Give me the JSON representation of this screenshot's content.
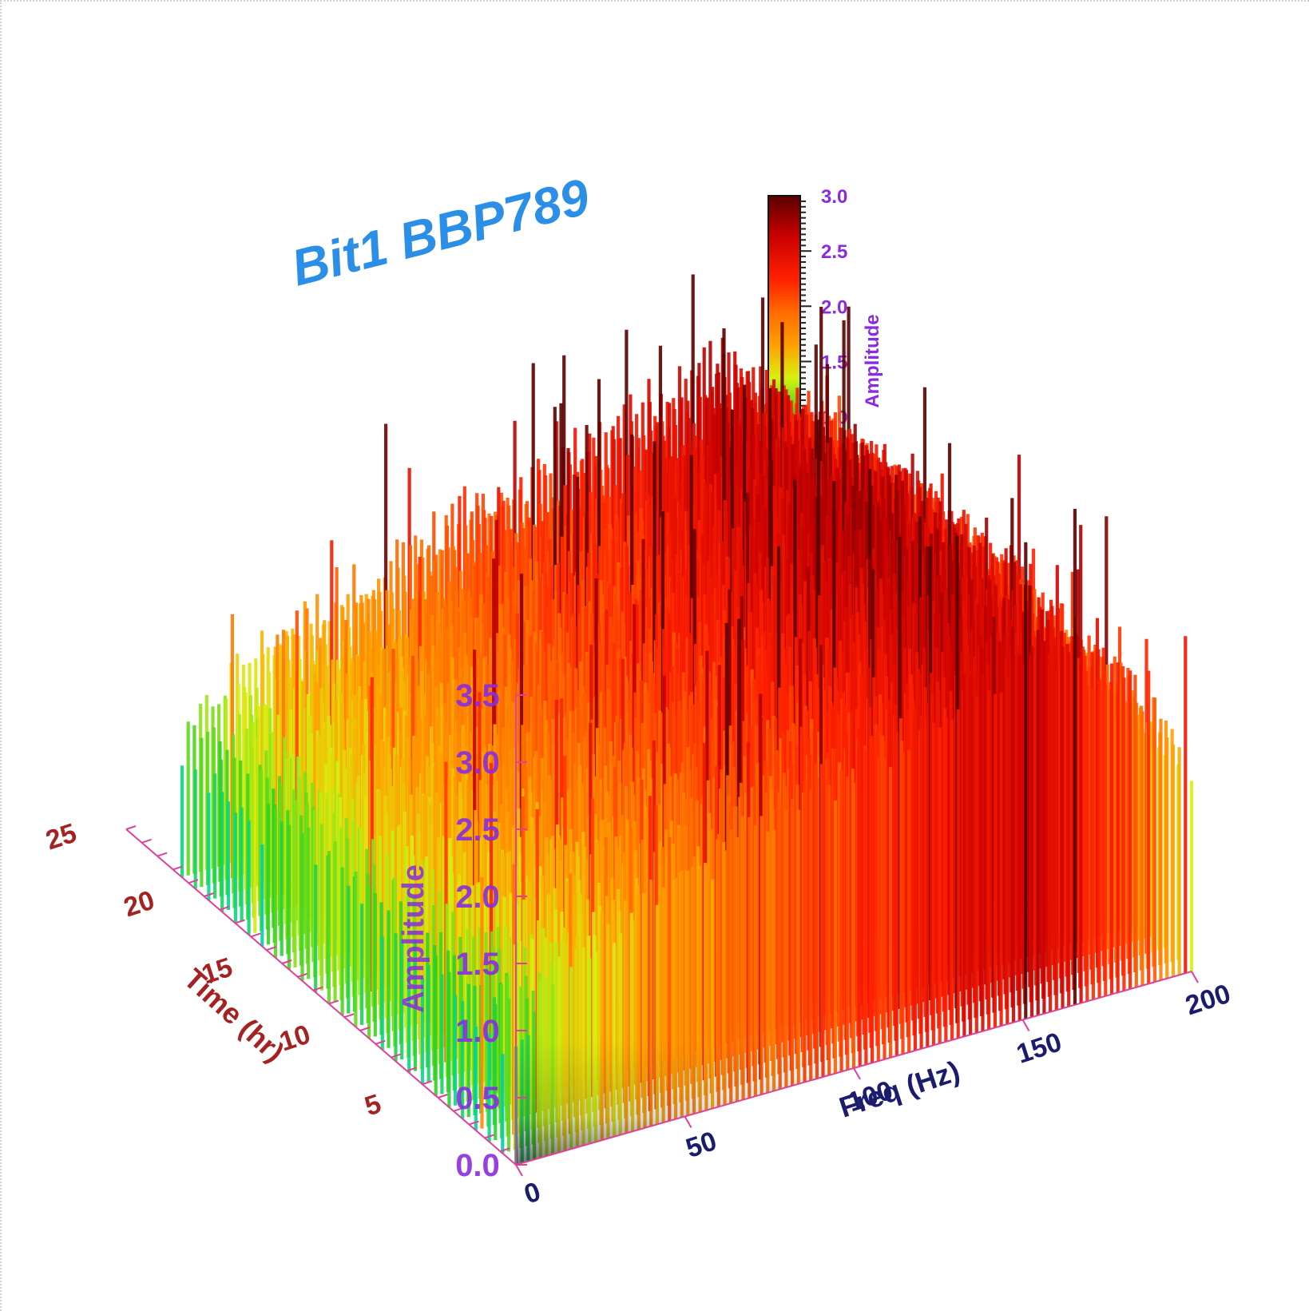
{
  "chart_data": {
    "type": "surface-3d",
    "title": "Bit1 BBP789",
    "x_axis": {
      "label": "Freq (Hz)",
      "range": [
        0,
        200
      ],
      "ticks": [
        "0",
        "50",
        "100",
        "150",
        "200"
      ]
    },
    "y_axis": {
      "label": "Time (hr)",
      "range": [
        0,
        25
      ],
      "ticks": [
        "5",
        "10",
        "15",
        "20",
        "25"
      ]
    },
    "z_axis": {
      "label": "Amplitude",
      "range": [
        0,
        3.5
      ],
      "ticks": [
        "0.0",
        "0.5",
        "1.0",
        "1.5",
        "2.0",
        "2.5",
        "3.0",
        "3.5"
      ]
    },
    "colorbar": {
      "label": "Amplitude",
      "range": [
        0,
        3.0
      ],
      "colormap": "rainbow",
      "ticks": [
        "0.5",
        "1.0",
        "1.5",
        "2.0",
        "2.5",
        "3.0"
      ]
    },
    "surface_profile": {
      "freq_hz": [
        0,
        10,
        20,
        30,
        40,
        50,
        60,
        70,
        80,
        90,
        100,
        110,
        120,
        130,
        140,
        150,
        160,
        170,
        180,
        190,
        200
      ],
      "time_hr": [
        0,
        5,
        10,
        15,
        20,
        25
      ],
      "amplitude": [
        [
          0.9,
          1.3,
          1.5,
          1.6,
          1.7,
          1.8,
          1.9,
          2.0,
          2.1,
          2.2,
          2.2,
          2.3,
          2.4,
          2.5,
          2.6,
          2.7,
          2.7,
          2.5,
          2.3,
          2.0,
          1.5
        ],
        [
          0.9,
          1.3,
          1.5,
          1.6,
          1.7,
          1.8,
          1.9,
          2.0,
          2.1,
          2.2,
          2.2,
          2.3,
          2.4,
          2.5,
          2.6,
          2.7,
          2.7,
          2.5,
          2.3,
          2.0,
          1.5
        ],
        [
          1.0,
          1.4,
          1.6,
          1.7,
          1.8,
          1.9,
          2.0,
          2.1,
          2.2,
          2.3,
          2.3,
          2.4,
          2.5,
          2.6,
          2.7,
          2.8,
          2.8,
          2.6,
          2.4,
          2.1,
          1.6
        ],
        [
          1.0,
          1.4,
          1.6,
          1.7,
          1.8,
          1.9,
          2.0,
          2.1,
          2.2,
          2.3,
          2.3,
          2.4,
          2.5,
          2.6,
          2.7,
          2.8,
          2.8,
          2.6,
          2.4,
          2.1,
          1.6
        ],
        [
          0.9,
          1.3,
          1.5,
          1.6,
          1.7,
          1.8,
          1.9,
          2.0,
          2.1,
          2.2,
          2.2,
          2.3,
          2.4,
          2.5,
          2.6,
          2.7,
          2.7,
          2.5,
          2.3,
          2.0,
          1.5
        ],
        [
          0.9,
          1.3,
          1.5,
          1.6,
          1.7,
          1.8,
          1.9,
          2.0,
          2.1,
          2.2,
          2.2,
          2.3,
          2.4,
          2.5,
          2.6,
          2.7,
          2.7,
          2.5,
          2.3,
          2.0,
          1.5
        ]
      ]
    },
    "colors": {
      "title": "#2b8fe8",
      "freq_axis": "#1c1c6e",
      "time_axis": "#a52222",
      "amplitude_axis": "#8a2be2",
      "axis_line": "#e0409a"
    }
  }
}
